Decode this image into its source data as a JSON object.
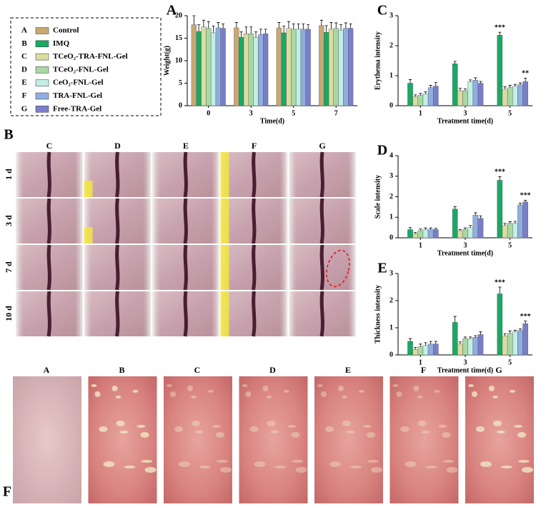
{
  "legend": {
    "keys": [
      "A",
      "B",
      "C",
      "D",
      "E",
      "F",
      "G"
    ],
    "names": [
      "Control",
      "IMQ",
      "TCeO₂-TRA-FNL-Gel",
      "TCeO₂-FNL-Gel",
      "CeO₂-FNL-Gel",
      "TRA-FNL-Gel",
      "Free-TRA-Gel"
    ],
    "colors": [
      "#c9a874",
      "#1aa865",
      "#dcdca0",
      "#a9d9a3",
      "#c2eee4",
      "#8faee0",
      "#7a7ec8"
    ]
  },
  "chart_data": [
    {
      "type": "bar",
      "panel_label": "A",
      "y_label": "Weight(g)",
      "x_label": "Time(d)",
      "categories": [
        "0",
        "3",
        "5",
        "7"
      ],
      "ylim": [
        0,
        20
      ],
      "yticks": [
        0,
        5,
        10,
        15,
        20
      ],
      "series": [
        {
          "values": [
            18,
            17.3,
            17.3,
            17.8
          ],
          "errors": [
            2,
            1.2,
            1.2,
            1.2
          ]
        },
        {
          "values": [
            16.5,
            15.2,
            16.2,
            16.3
          ],
          "errors": [
            1.5,
            1.2,
            1.5,
            1.5
          ]
        },
        {
          "values": [
            17.5,
            16,
            17.2,
            17
          ],
          "errors": [
            1.5,
            1.5,
            1.5,
            1.5
          ]
        },
        {
          "values": [
            17.2,
            16,
            17,
            17.2
          ],
          "errors": [
            1.5,
            1.5,
            1.2,
            1.2
          ]
        },
        {
          "values": [
            16.2,
            15.2,
            17,
            16.8
          ],
          "errors": [
            1.5,
            1.2,
            1.2,
            1.2
          ]
        },
        {
          "values": [
            17.3,
            15.8,
            17,
            17.2
          ],
          "errors": [
            1.2,
            1.2,
            1.2,
            1.2
          ]
        },
        {
          "values": [
            17.2,
            16,
            17,
            17.2
          ],
          "errors": [
            1,
            1,
            1,
            1
          ]
        }
      ]
    },
    {
      "type": "bar",
      "panel_label": "C",
      "y_label": "Erythema intensity",
      "x_label": "Treatment time(d)",
      "categories": [
        "1",
        "3",
        "5"
      ],
      "ylim": [
        0,
        3
      ],
      "yticks": [
        0,
        1,
        2,
        3
      ],
      "series": [
        {
          "values": [
            0,
            0,
            0
          ],
          "errors": [
            0,
            0,
            0
          ]
        },
        {
          "values": [
            0.75,
            1.4,
            2.35
          ],
          "errors": [
            0.12,
            0.08,
            0.1
          ],
          "significance": [
            null,
            null,
            "***"
          ]
        },
        {
          "values": [
            0.3,
            0.5,
            0.55
          ],
          "errors": [
            0.06,
            0.08,
            0.08
          ]
        },
        {
          "values": [
            0.35,
            0.5,
            0.6
          ],
          "errors": [
            0.06,
            0.06,
            0.08
          ]
        },
        {
          "values": [
            0.4,
            0.8,
            0.65
          ],
          "errors": [
            0.06,
            0.06,
            0.06
          ]
        },
        {
          "values": [
            0.6,
            0.85,
            0.7
          ],
          "errors": [
            0.08,
            0.08,
            0.06
          ]
        },
        {
          "values": [
            0.65,
            0.75,
            0.8
          ],
          "errors": [
            0.12,
            0.06,
            0.12
          ],
          "significance": [
            null,
            null,
            "**"
          ]
        }
      ]
    },
    {
      "type": "bar",
      "panel_label": "D",
      "y_label": "Scale intensity",
      "x_label": "Treatment time(d)",
      "categories": [
        "1",
        "3",
        "5"
      ],
      "ylim": [
        0,
        4
      ],
      "yticks": [
        0,
        1,
        2,
        3,
        4
      ],
      "series": [
        {
          "values": [
            0,
            0,
            0
          ],
          "errors": [
            0,
            0,
            0
          ]
        },
        {
          "values": [
            0.4,
            1.4,
            2.8
          ],
          "errors": [
            0.1,
            0.12,
            0.18
          ],
          "significance": [
            null,
            null,
            "***"
          ]
        },
        {
          "values": [
            0.2,
            0.35,
            0.6
          ],
          "errors": [
            0.06,
            0.06,
            0.1
          ]
        },
        {
          "values": [
            0.35,
            0.4,
            0.7
          ],
          "errors": [
            0.08,
            0.08,
            0.08
          ]
        },
        {
          "values": [
            0.4,
            0.5,
            0.7
          ],
          "errors": [
            0.08,
            0.1,
            0.1
          ]
        },
        {
          "values": [
            0.4,
            1.1,
            1.6
          ],
          "errors": [
            0.08,
            0.12,
            0.08
          ]
        },
        {
          "values": [
            0.4,
            0.95,
            1.75
          ],
          "errors": [
            0.06,
            0.12,
            0.08
          ],
          "significance": [
            null,
            null,
            "***"
          ]
        }
      ]
    },
    {
      "type": "bar",
      "panel_label": "E",
      "y_label": "Thickness intensity",
      "x_label": "Treatment time(d)",
      "categories": [
        "1",
        "3",
        "5"
      ],
      "ylim": [
        0,
        3
      ],
      "yticks": [
        0,
        1,
        2,
        3
      ],
      "series": [
        {
          "values": [
            0,
            0,
            0
          ],
          "errors": [
            0,
            0,
            0
          ]
        },
        {
          "values": [
            0.5,
            1.2,
            2.25
          ],
          "errors": [
            0.1,
            0.22,
            0.25
          ],
          "significance": [
            null,
            null,
            "***"
          ]
        },
        {
          "values": [
            0.2,
            0.4,
            0.7
          ],
          "errors": [
            0.08,
            0.08,
            0.08
          ]
        },
        {
          "values": [
            0.3,
            0.6,
            0.8
          ],
          "errors": [
            0.1,
            0.06,
            0.08
          ]
        },
        {
          "values": [
            0.35,
            0.6,
            0.85
          ],
          "errors": [
            0.1,
            0.06,
            0.06
          ]
        },
        {
          "values": [
            0.4,
            0.65,
            0.9
          ],
          "errors": [
            0.1,
            0.06,
            0.06
          ]
        },
        {
          "values": [
            0.4,
            0.75,
            1.15
          ],
          "errors": [
            0.1,
            0.1,
            0.1
          ],
          "significance": [
            null,
            null,
            "***"
          ]
        }
      ]
    }
  ],
  "panel_B": {
    "label": "B",
    "columns": [
      "C",
      "D",
      "E",
      "F",
      "G"
    ],
    "rows": [
      "1 d",
      "3 d",
      "7 d",
      "10 d"
    ]
  },
  "panel_F": {
    "label": "F",
    "columns": [
      "A",
      "B",
      "C",
      "D",
      "E",
      "F",
      "G"
    ]
  }
}
